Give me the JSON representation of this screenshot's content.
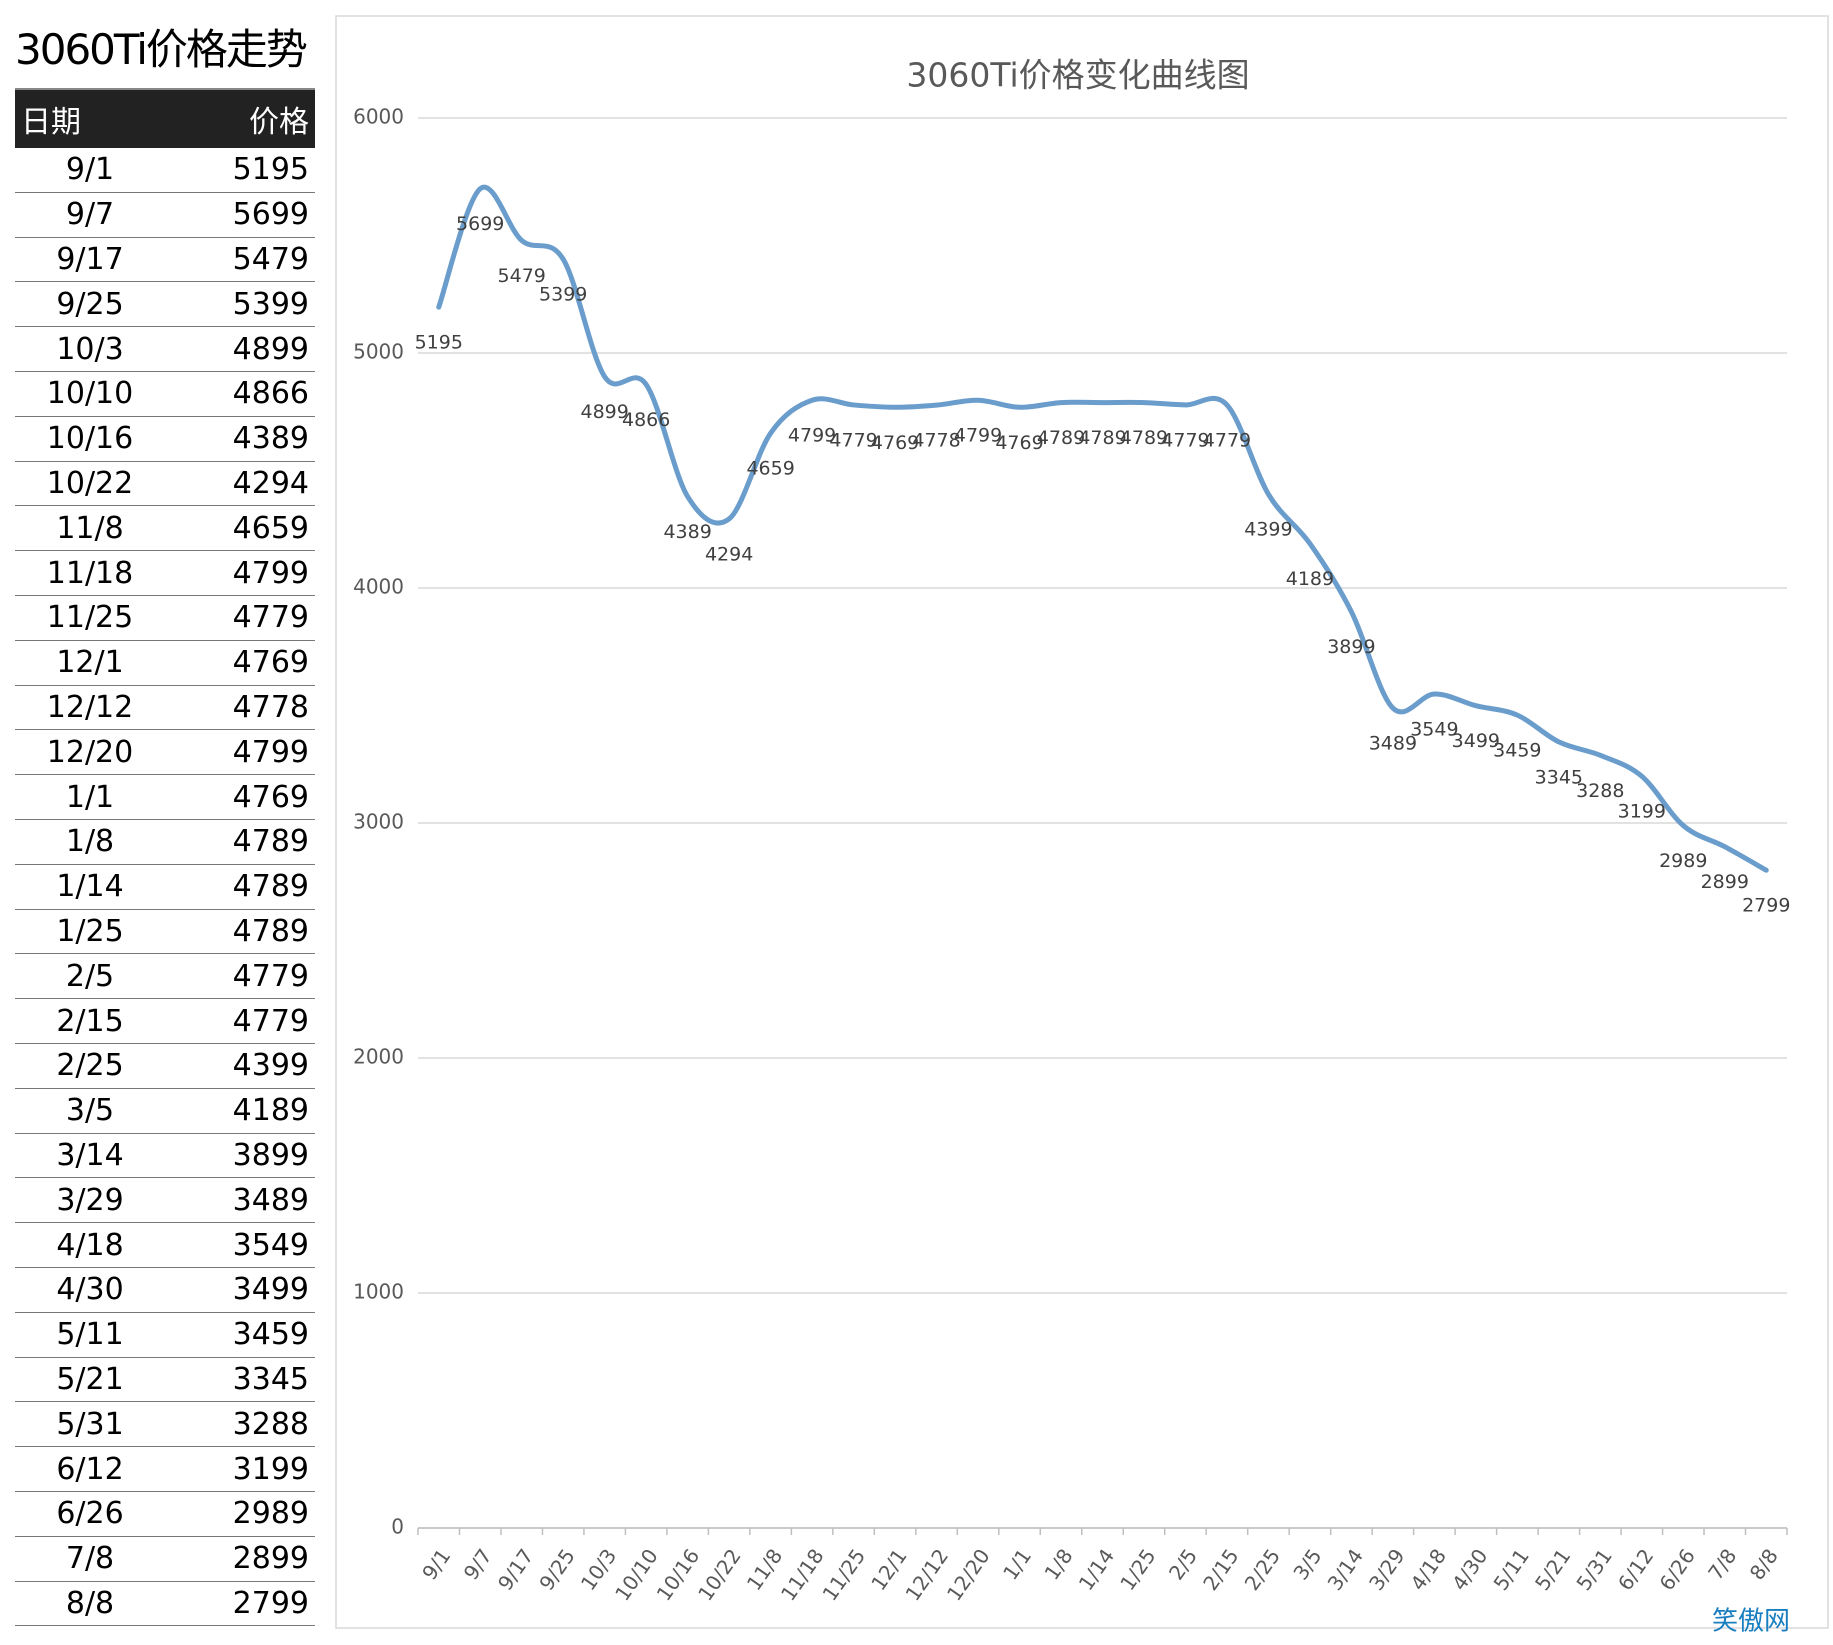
{
  "table": {
    "title": "3060Ti价格走势",
    "columns": [
      "日期",
      "价格"
    ]
  },
  "chart_data": {
    "type": "line",
    "title": "3060Ti价格变化曲线图",
    "categories": [
      "9/1",
      "9/7",
      "9/17",
      "9/25",
      "10/3",
      "10/10",
      "10/16",
      "10/22",
      "11/8",
      "11/18",
      "11/25",
      "12/1",
      "12/12",
      "12/20",
      "1/1",
      "1/8",
      "1/14",
      "1/25",
      "2/5",
      "2/15",
      "2/25",
      "3/5",
      "3/14",
      "3/29",
      "4/18",
      "4/30",
      "5/11",
      "5/21",
      "5/31",
      "6/12",
      "6/26",
      "7/8",
      "8/8"
    ],
    "values": [
      5195,
      5699,
      5479,
      5399,
      4899,
      4866,
      4389,
      4294,
      4659,
      4799,
      4779,
      4769,
      4778,
      4799,
      4769,
      4789,
      4789,
      4789,
      4779,
      4779,
      4399,
      4189,
      3899,
      3489,
      3549,
      3499,
      3459,
      3345,
      3288,
      3199,
      2989,
      2899,
      2799
    ],
    "color": "#6a9dcc",
    "ylim": [
      0,
      6000
    ],
    "yticks": [
      0,
      1000,
      2000,
      3000,
      4000,
      5000,
      6000
    ],
    "grid": true,
    "smooth": true
  },
  "watermark": "笑傲网"
}
